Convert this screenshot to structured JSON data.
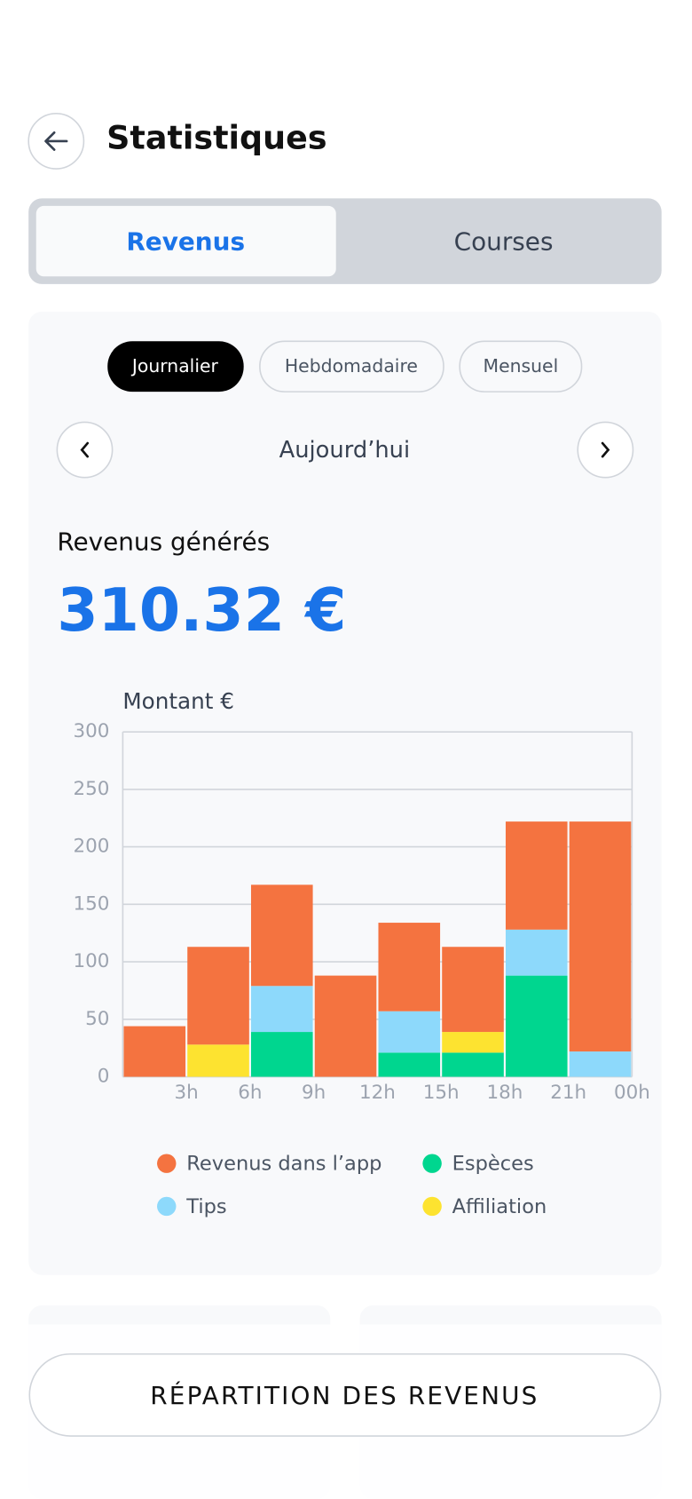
{
  "header": {
    "title": "Statistiques"
  },
  "tabs": [
    "Revenus",
    "Courses"
  ],
  "periods": [
    "Journalier",
    "Hebdomadaire",
    "Mensuel"
  ],
  "date_label": "Aujourd’hui",
  "revenue_label": "Revenus générés",
  "revenue_amount": "310.32 €",
  "chart_data": {
    "type": "stacked_bar",
    "y_label": "Montant €",
    "categories": [
      "3h",
      "6h",
      "9h",
      "12h",
      "15h",
      "18h",
      "21h",
      "00h"
    ],
    "series": [
      {
        "name": "Revenus dans l’app",
        "color": "#f47340",
        "values": [
          44,
          85,
          88,
          88,
          77,
          74,
          94,
          200
        ]
      },
      {
        "name": "Espèces",
        "color": "#00d68f",
        "values": [
          0,
          0,
          39,
          0,
          21,
          21,
          88,
          0
        ]
      },
      {
        "name": "Tips",
        "color": "#8dd9fb",
        "values": [
          0,
          0,
          40,
          0,
          36,
          0,
          40,
          22
        ]
      },
      {
        "name": "Affiliation",
        "color": "#fde330",
        "values": [
          0,
          28,
          0,
          0,
          0,
          18,
          0,
          0
        ]
      }
    ],
    "ylim": [
      0,
      300
    ],
    "yticks": [
      0,
      50,
      100,
      150,
      200,
      250,
      300
    ],
    "grid": true
  },
  "button": "RÉPARTITION DES REVENUS"
}
